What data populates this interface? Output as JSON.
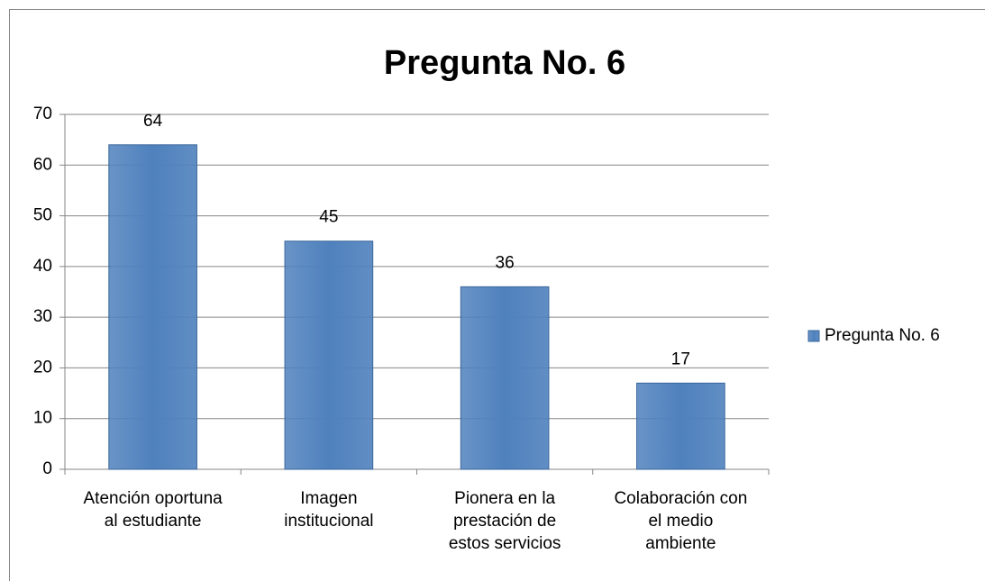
{
  "chart_data": {
    "type": "bar",
    "title": "Pregunta No. 6",
    "categories": [
      "Atención oportuna al estudiante",
      "Imagen institucional",
      "Pionera en la prestación de estos servicios",
      "Colaboración con el medio ambiente"
    ],
    "series": [
      {
        "name": "Pregunta No. 6",
        "color": "#4f81bd",
        "values": [
          64,
          45,
          36,
          17
        ]
      }
    ],
    "ylim": [
      0,
      70
    ],
    "yticks": [
      0,
      10,
      20,
      30,
      40,
      50,
      60,
      70
    ],
    "grid": true,
    "legend": "right",
    "data_labels": true
  }
}
